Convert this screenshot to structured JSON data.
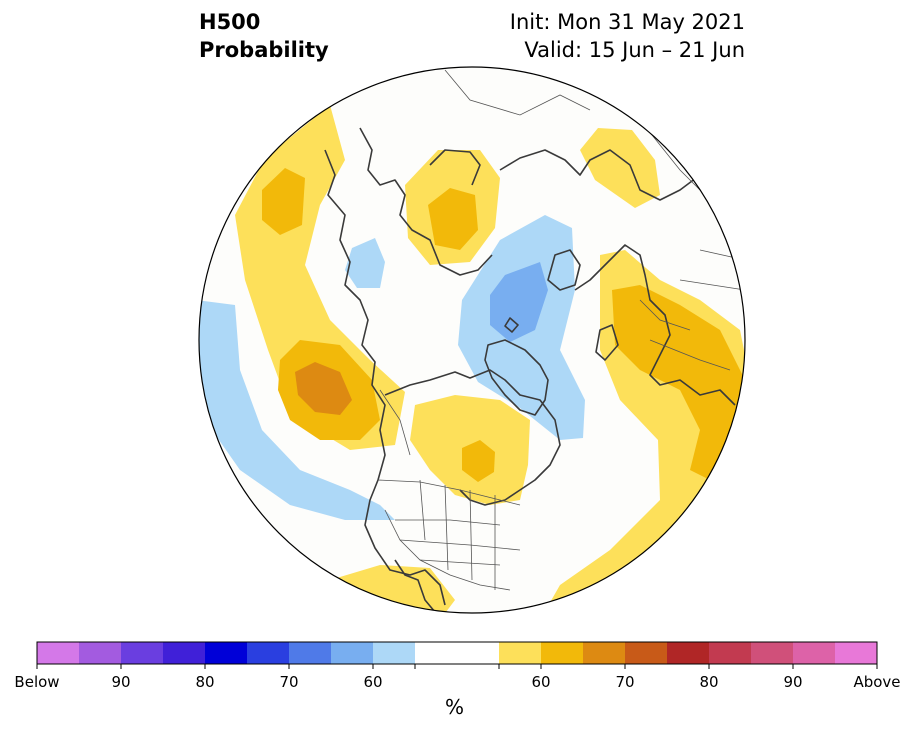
{
  "title": {
    "left": [
      "H500",
      "Probability"
    ],
    "init": "Init: Mon 31 May 2021",
    "valid": "Valid: 15 Jun – 21 Jun"
  },
  "colors": {
    "ocean": "#fdfdfb",
    "coast": "#3a3a3a",
    "border": "#555555",
    "below_60": "#add8f7",
    "below_70": "#78aef0",
    "above_60": "#fde05a",
    "above_70": "#f2b90a",
    "above_80": "#dd8a12"
  },
  "colorbar": {
    "colors": [
      "#d478e8",
      "#a35be0",
      "#6a3ee0",
      "#4020d8",
      "#0000d8",
      "#2a3fe0",
      "#4f7ae8",
      "#78aef0",
      "#add8f7",
      "#ffffff",
      "#ffffff",
      "#fde05a",
      "#f2b90a",
      "#dd8a12",
      "#c85a18",
      "#b02626",
      "#c23a50",
      "#d0507a",
      "#dd62a8",
      "#e878d8"
    ],
    "tick_labels": [
      "Below",
      "90",
      "80",
      "70",
      "60",
      "60",
      "70",
      "80",
      "90",
      "Above"
    ],
    "unit": "%"
  },
  "map": {
    "projection": "north-polar-stereographic",
    "features": [
      "coastlines",
      "country-borders",
      "us-state-borders"
    ]
  }
}
